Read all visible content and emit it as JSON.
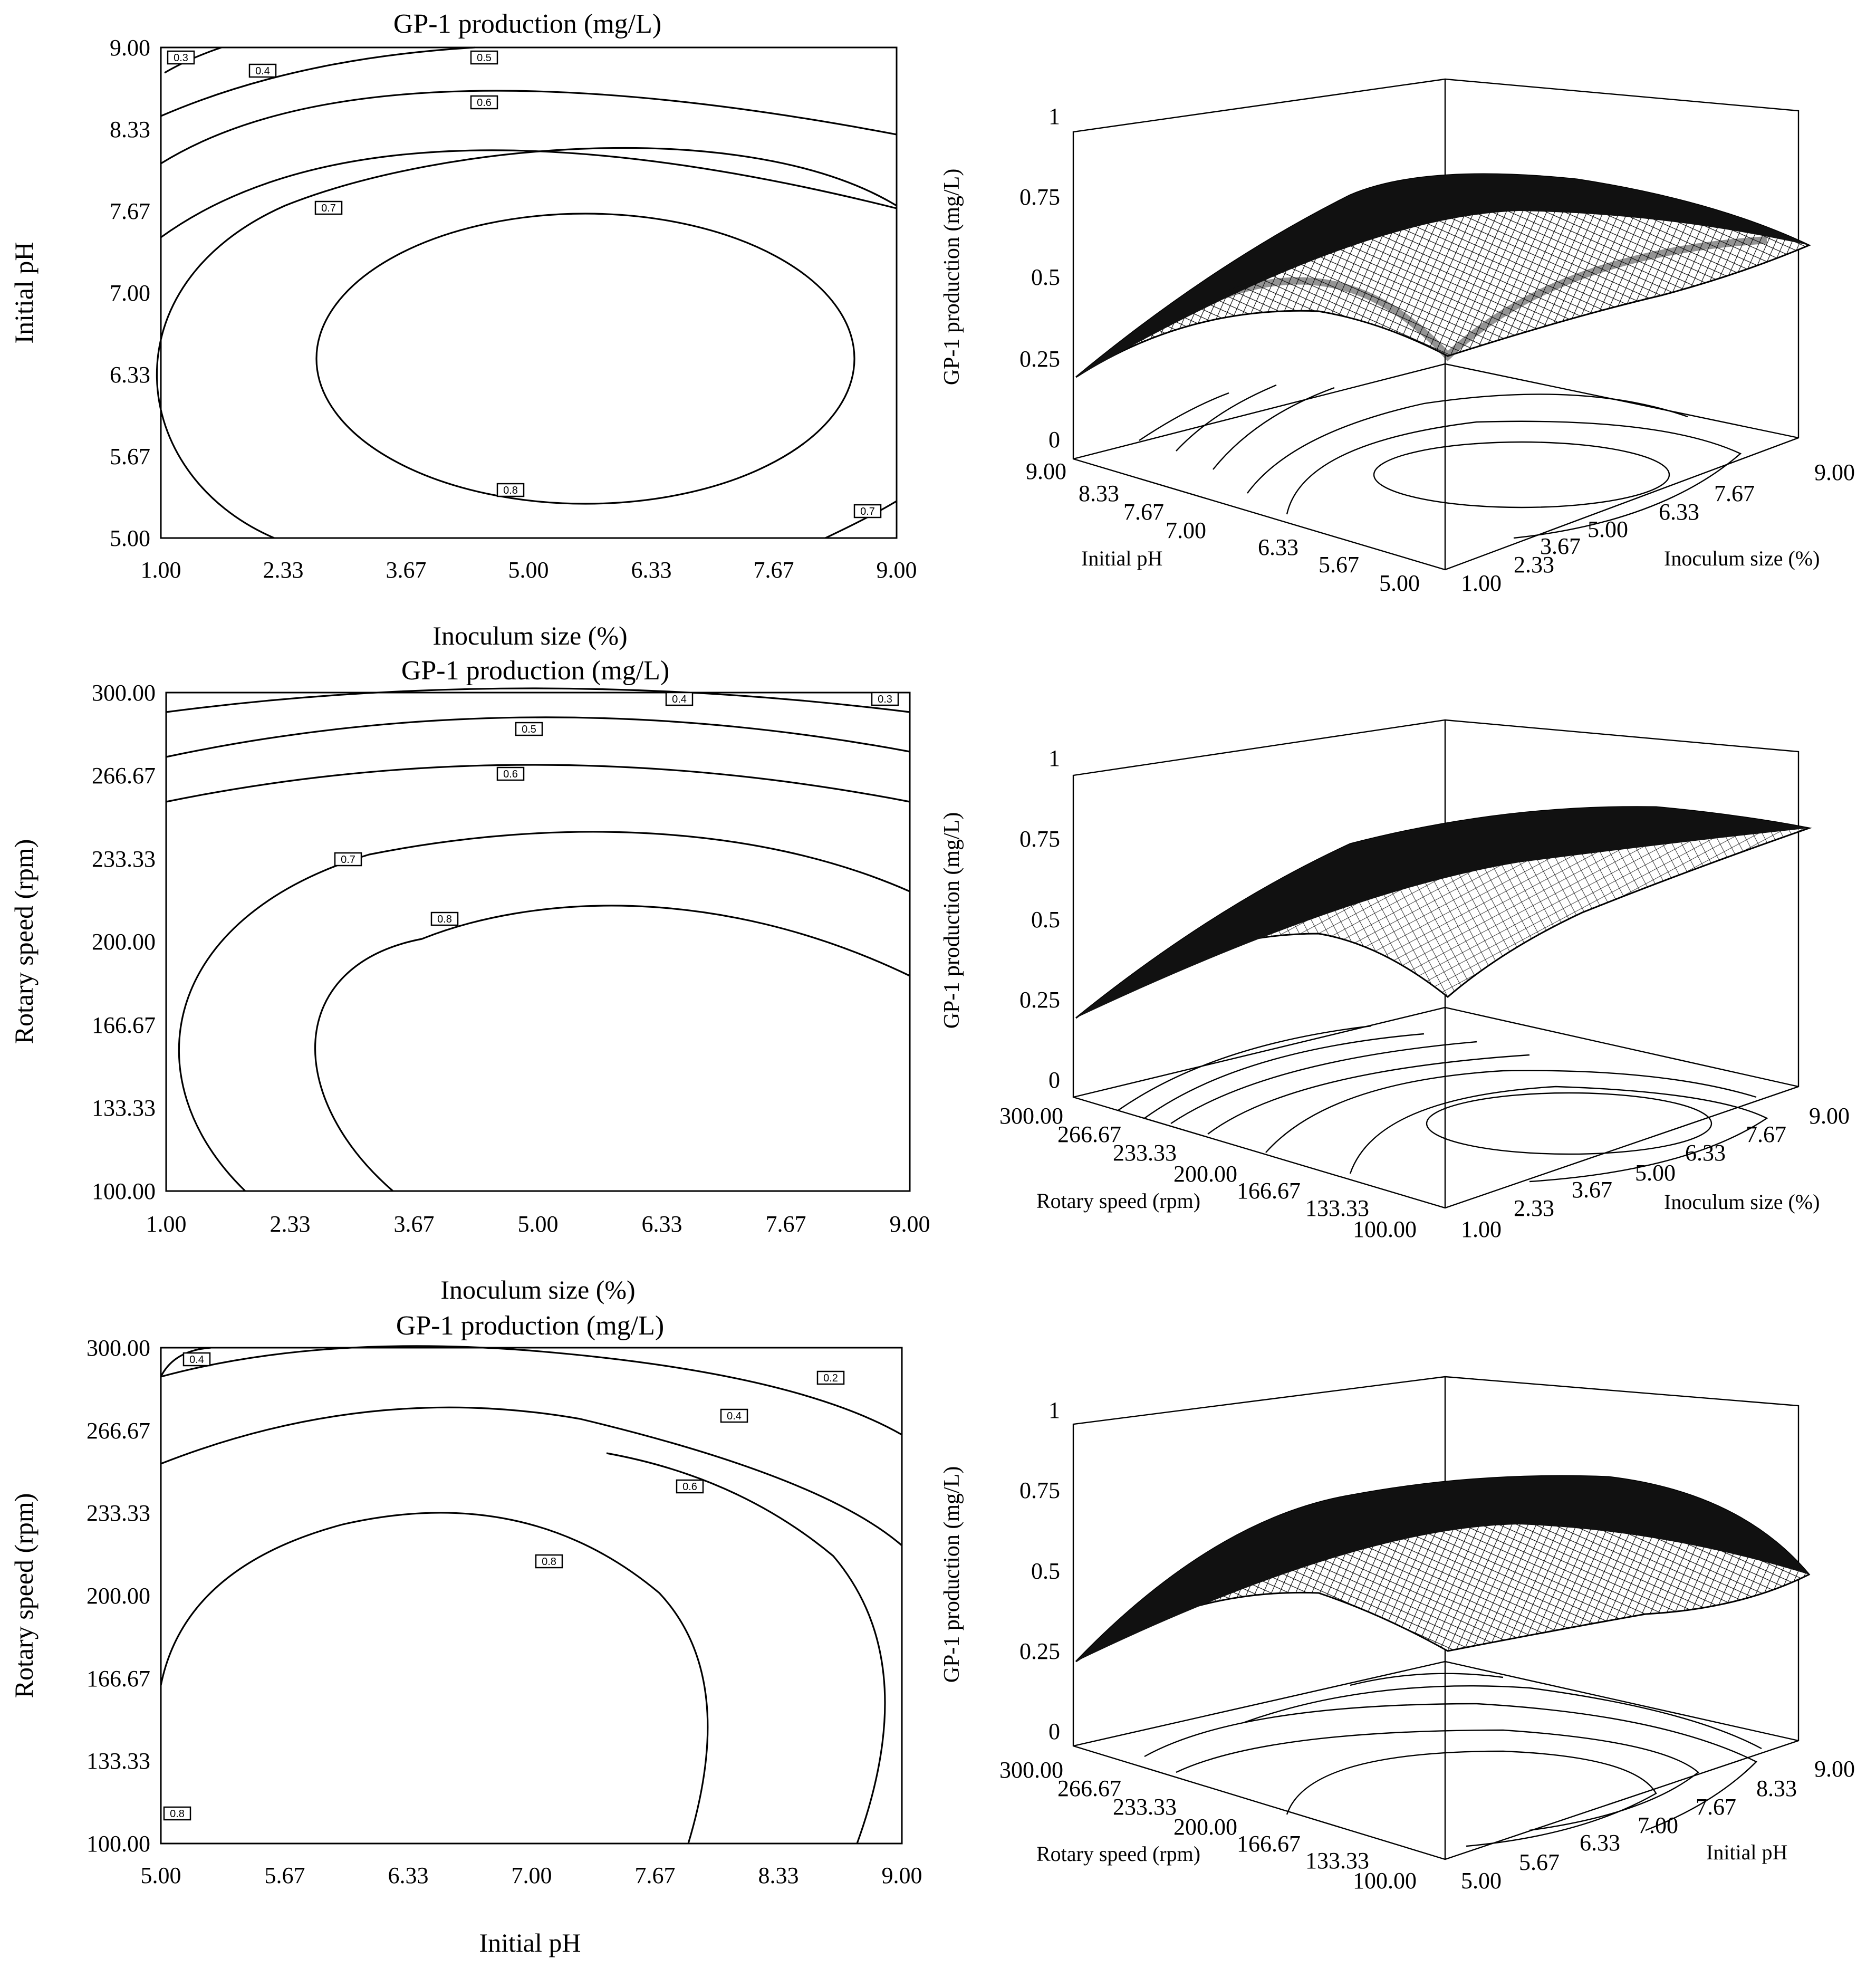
{
  "chart_data": [
    {
      "type": "contour",
      "title": "GP-1 production (mg/L)",
      "xlabel": "Inoculum size (%)",
      "ylabel": "Initial pH",
      "x_ticks": [
        "1.00",
        "2.33",
        "3.67",
        "5.00",
        "6.33",
        "7.67",
        "9.00"
      ],
      "y_ticks": [
        "5.00",
        "5.67",
        "6.33",
        "7.00",
        "7.67",
        "8.33",
        "9.00"
      ],
      "xlim": [
        1,
        9
      ],
      "ylim": [
        5,
        9
      ],
      "contour_levels": [
        {
          "label": "0.3",
          "at": [
            1.15,
            8.88
          ]
        },
        {
          "label": "0.4",
          "at": [
            2.0,
            8.78
          ]
        },
        {
          "label": "0.5",
          "at": [
            4.55,
            8.88
          ]
        },
        {
          "label": "0.6",
          "at": [
            4.55,
            8.53
          ]
        },
        {
          "label": "0.7",
          "at": [
            2.75,
            7.68
          ]
        },
        {
          "label": "0.8",
          "at": [
            4.8,
            5.36
          ]
        },
        {
          "label": "0.7",
          "at": [
            8.75,
            5.2
          ]
        }
      ]
    },
    {
      "type": "surface3d",
      "zlabel": "GP-1 production (mg/L)",
      "z_ticks": [
        "0",
        "0.25",
        "0.5",
        "0.75",
        "1"
      ],
      "axis_left_label": "Initial pH",
      "axis_left_ticks": [
        "9.00",
        "8.33",
        "7.67",
        "7.00",
        "6.33",
        "5.67",
        "5.00"
      ],
      "axis_right_label": "Inoculum size (%)",
      "axis_right_ticks": [
        "1.00",
        "2.33",
        "3.67",
        "5.00",
        "6.33",
        "7.67",
        "9.00"
      ]
    },
    {
      "type": "contour",
      "title": "GP-1 production (mg/L)",
      "xlabel": "Inoculum size (%)",
      "ylabel": "Rotary speed (rpm)",
      "x_ticks": [
        "1.00",
        "2.33",
        "3.67",
        "5.00",
        "6.33",
        "7.67",
        "9.00"
      ],
      "y_ticks": [
        "100.00",
        "133.33",
        "166.67",
        "200.00",
        "233.33",
        "266.67",
        "300.00"
      ],
      "xlim": [
        1,
        9
      ],
      "ylim": [
        100,
        300
      ],
      "contour_levels": [
        {
          "label": "0.4",
          "at": [
            6.45,
            296
          ]
        },
        {
          "label": "0.3",
          "at": [
            8.65,
            296
          ]
        },
        {
          "label": "0.5",
          "at": [
            4.95,
            284
          ]
        },
        {
          "label": "0.6",
          "at": [
            4.75,
            266
          ]
        },
        {
          "label": "0.7",
          "at": [
            3.05,
            232
          ]
        },
        {
          "label": "0.8",
          "at": [
            4.3,
            208
          ]
        }
      ]
    },
    {
      "type": "surface3d",
      "zlabel": "GP-1 production (mg/L)",
      "z_ticks": [
        "0",
        "0.25",
        "0.5",
        "0.75",
        "1"
      ],
      "axis_left_label": "Rotary speed (rpm)",
      "axis_left_ticks": [
        "300.00",
        "266.67",
        "233.33",
        "200.00",
        "166.67",
        "133.33",
        "100.00"
      ],
      "axis_right_label": "Inoculum size (%)",
      "axis_right_ticks": [
        "1.00",
        "2.33",
        "3.67",
        "5.00",
        "6.33",
        "7.67",
        "9.00"
      ]
    },
    {
      "type": "contour",
      "title": "GP-1 production (mg/L)",
      "xlabel": "Initial pH",
      "ylabel": "Rotary speed (rpm)",
      "x_ticks": [
        "5.00",
        "5.67",
        "6.33",
        "7.00",
        "7.67",
        "8.33",
        "9.00"
      ],
      "y_ticks": [
        "100.00",
        "133.33",
        "166.67",
        "200.00",
        "233.33",
        "266.67",
        "300.00"
      ],
      "xlim": [
        5,
        9
      ],
      "ylim": [
        100,
        300
      ],
      "contour_levels": [
        {
          "label": "0.4",
          "at": [
            5.2,
            296
          ]
        },
        {
          "label": "0.2",
          "at": [
            8.65,
            286
          ]
        },
        {
          "label": "0.4",
          "at": [
            8.08,
            270
          ]
        },
        {
          "label": "0.6",
          "at": [
            7.84,
            243
          ]
        },
        {
          "label": "0.8",
          "at": [
            7.08,
            213
          ]
        },
        {
          "label": "0.8",
          "at": [
            5.1,
            113
          ]
        }
      ]
    },
    {
      "type": "surface3d",
      "zlabel": "GP-1 production (mg/L)",
      "z_ticks": [
        "0",
        "0.25",
        "0.5",
        "0.75",
        "1"
      ],
      "axis_left_label": "Rotary speed (rpm)",
      "axis_left_ticks": [
        "300.00",
        "266.67",
        "233.33",
        "200.00",
        "166.67",
        "133.33",
        "100.00"
      ],
      "axis_right_label": "Initial pH",
      "axis_right_ticks": [
        "5.00",
        "5.67",
        "6.33",
        "7.00",
        "7.67",
        "8.33",
        "9.00"
      ]
    }
  ]
}
